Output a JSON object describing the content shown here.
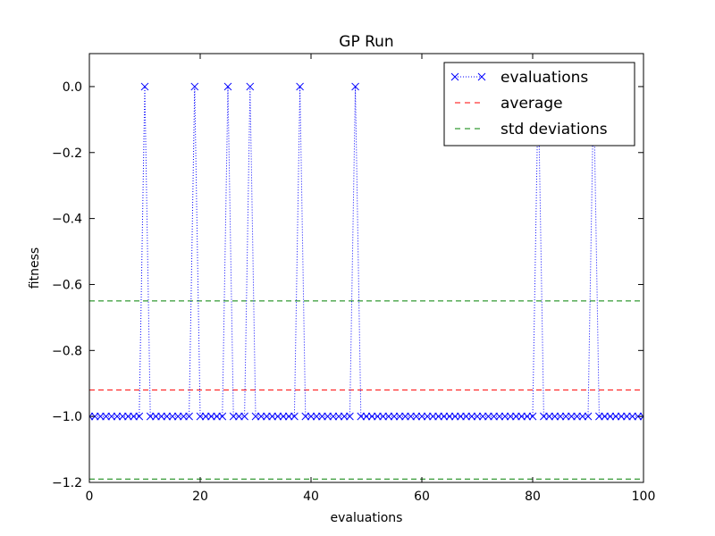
{
  "chart_data": {
    "type": "line",
    "title": "GP Run",
    "xlabel": "evaluations",
    "ylabel": "fitness",
    "xlim": [
      0,
      100
    ],
    "ylim": [
      -1.2,
      0.1
    ],
    "xticks": [
      0,
      20,
      40,
      60,
      80,
      100
    ],
    "yticks": [
      0.0,
      -0.2,
      -0.4,
      -0.6,
      -0.8,
      -1.0,
      -1.2
    ],
    "xtick_labels": [
      "0",
      "20",
      "40",
      "60",
      "80",
      "100"
    ],
    "ytick_labels": [
      "0.0",
      "−0.2",
      "−0.4",
      "−0.6",
      "−0.8",
      "−1.0",
      "−1.2"
    ],
    "grid": false,
    "legend_position": "top-right",
    "series": [
      {
        "name": "evaluations",
        "style": "dotted-with-x-markers",
        "color": "#0000ff",
        "x": [
          0,
          1,
          2,
          3,
          4,
          5,
          6,
          7,
          8,
          9,
          10,
          11,
          12,
          13,
          14,
          15,
          16,
          17,
          18,
          19,
          20,
          21,
          22,
          23,
          24,
          25,
          26,
          27,
          28,
          29,
          30,
          31,
          32,
          33,
          34,
          35,
          36,
          37,
          38,
          39,
          40,
          41,
          42,
          43,
          44,
          45,
          46,
          47,
          48,
          49,
          50,
          51,
          52,
          53,
          54,
          55,
          56,
          57,
          58,
          59,
          60,
          61,
          62,
          63,
          64,
          65,
          66,
          67,
          68,
          69,
          70,
          71,
          72,
          73,
          74,
          75,
          76,
          77,
          78,
          79,
          80,
          81,
          82,
          83,
          84,
          85,
          86,
          87,
          88,
          89,
          90,
          91,
          92,
          93,
          94,
          95,
          96,
          97,
          98,
          99,
          100
        ],
        "y": [
          -1,
          -1,
          -1,
          -1,
          -1,
          -1,
          -1,
          -1,
          -1,
          -1,
          0,
          -1,
          -1,
          -1,
          -1,
          -1,
          -1,
          -1,
          -1,
          0,
          -1,
          -1,
          -1,
          -1,
          -1,
          0,
          -1,
          -1,
          -1,
          0,
          -1,
          -1,
          -1,
          -1,
          -1,
          -1,
          -1,
          -1,
          0,
          -1,
          -1,
          -1,
          -1,
          -1,
          -1,
          -1,
          -1,
          -1,
          0,
          -1,
          -1,
          -1,
          -1,
          -1,
          -1,
          -1,
          -1,
          -1,
          -1,
          -1,
          -1,
          -1,
          -1,
          -1,
          -1,
          -1,
          -1,
          -1,
          -1,
          -1,
          -1,
          -1,
          -1,
          -1,
          -1,
          -1,
          -1,
          -1,
          -1,
          -1,
          -1,
          0,
          -1,
          -1,
          -1,
          -1,
          -1,
          -1,
          -1,
          -1,
          -1,
          0,
          -1,
          -1,
          -1,
          -1,
          -1,
          -1,
          -1,
          -1,
          -1
        ]
      },
      {
        "name": "average",
        "style": "dashed",
        "color": "#ff0000",
        "y_constant": -0.92
      },
      {
        "name": "std deviations",
        "style": "dashed",
        "color": "#008000",
        "y_constants": [
          -0.65,
          -1.19
        ]
      }
    ]
  }
}
